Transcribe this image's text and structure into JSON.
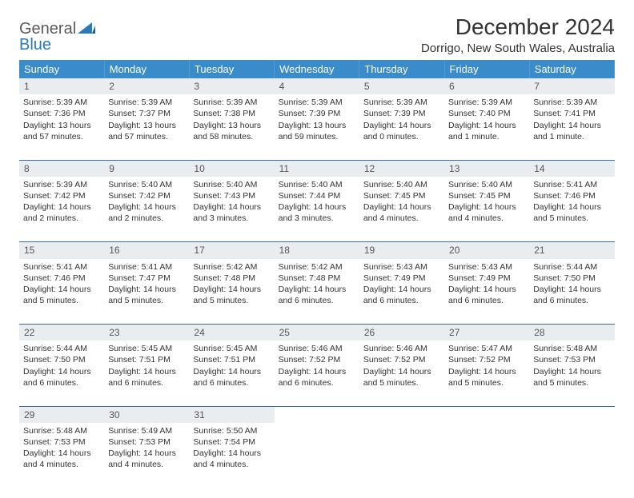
{
  "logo": {
    "word1": "General",
    "word2": "Blue",
    "accent_color": "#2a7ab8"
  },
  "title": "December 2024",
  "location": "Dorrigo, New South Wales, Australia",
  "theme": {
    "header_bg": "#3a8bc9",
    "header_text": "#ffffff",
    "daynum_bg": "#e9edf0",
    "border_color": "#3a6a9a",
    "text_color": "#333333",
    "cell_fontsize": 10.5,
    "header_fontsize": 13
  },
  "weekdays": [
    "Sunday",
    "Monday",
    "Tuesday",
    "Wednesday",
    "Thursday",
    "Friday",
    "Saturday"
  ],
  "weeks": [
    {
      "nums": [
        "1",
        "2",
        "3",
        "4",
        "5",
        "6",
        "7"
      ],
      "cells": [
        {
          "sunrise": "Sunrise: 5:39 AM",
          "sunset": "Sunset: 7:36 PM",
          "day1": "Daylight: 13 hours",
          "day2": "and 57 minutes."
        },
        {
          "sunrise": "Sunrise: 5:39 AM",
          "sunset": "Sunset: 7:37 PM",
          "day1": "Daylight: 13 hours",
          "day2": "and 57 minutes."
        },
        {
          "sunrise": "Sunrise: 5:39 AM",
          "sunset": "Sunset: 7:38 PM",
          "day1": "Daylight: 13 hours",
          "day2": "and 58 minutes."
        },
        {
          "sunrise": "Sunrise: 5:39 AM",
          "sunset": "Sunset: 7:39 PM",
          "day1": "Daylight: 13 hours",
          "day2": "and 59 minutes."
        },
        {
          "sunrise": "Sunrise: 5:39 AM",
          "sunset": "Sunset: 7:39 PM",
          "day1": "Daylight: 14 hours",
          "day2": "and 0 minutes."
        },
        {
          "sunrise": "Sunrise: 5:39 AM",
          "sunset": "Sunset: 7:40 PM",
          "day1": "Daylight: 14 hours",
          "day2": "and 1 minute."
        },
        {
          "sunrise": "Sunrise: 5:39 AM",
          "sunset": "Sunset: 7:41 PM",
          "day1": "Daylight: 14 hours",
          "day2": "and 1 minute."
        }
      ]
    },
    {
      "nums": [
        "8",
        "9",
        "10",
        "11",
        "12",
        "13",
        "14"
      ],
      "cells": [
        {
          "sunrise": "Sunrise: 5:39 AM",
          "sunset": "Sunset: 7:42 PM",
          "day1": "Daylight: 14 hours",
          "day2": "and 2 minutes."
        },
        {
          "sunrise": "Sunrise: 5:40 AM",
          "sunset": "Sunset: 7:42 PM",
          "day1": "Daylight: 14 hours",
          "day2": "and 2 minutes."
        },
        {
          "sunrise": "Sunrise: 5:40 AM",
          "sunset": "Sunset: 7:43 PM",
          "day1": "Daylight: 14 hours",
          "day2": "and 3 minutes."
        },
        {
          "sunrise": "Sunrise: 5:40 AM",
          "sunset": "Sunset: 7:44 PM",
          "day1": "Daylight: 14 hours",
          "day2": "and 3 minutes."
        },
        {
          "sunrise": "Sunrise: 5:40 AM",
          "sunset": "Sunset: 7:45 PM",
          "day1": "Daylight: 14 hours",
          "day2": "and 4 minutes."
        },
        {
          "sunrise": "Sunrise: 5:40 AM",
          "sunset": "Sunset: 7:45 PM",
          "day1": "Daylight: 14 hours",
          "day2": "and 4 minutes."
        },
        {
          "sunrise": "Sunrise: 5:41 AM",
          "sunset": "Sunset: 7:46 PM",
          "day1": "Daylight: 14 hours",
          "day2": "and 5 minutes."
        }
      ]
    },
    {
      "nums": [
        "15",
        "16",
        "17",
        "18",
        "19",
        "20",
        "21"
      ],
      "cells": [
        {
          "sunrise": "Sunrise: 5:41 AM",
          "sunset": "Sunset: 7:46 PM",
          "day1": "Daylight: 14 hours",
          "day2": "and 5 minutes."
        },
        {
          "sunrise": "Sunrise: 5:41 AM",
          "sunset": "Sunset: 7:47 PM",
          "day1": "Daylight: 14 hours",
          "day2": "and 5 minutes."
        },
        {
          "sunrise": "Sunrise: 5:42 AM",
          "sunset": "Sunset: 7:48 PM",
          "day1": "Daylight: 14 hours",
          "day2": "and 5 minutes."
        },
        {
          "sunrise": "Sunrise: 5:42 AM",
          "sunset": "Sunset: 7:48 PM",
          "day1": "Daylight: 14 hours",
          "day2": "and 6 minutes."
        },
        {
          "sunrise": "Sunrise: 5:43 AM",
          "sunset": "Sunset: 7:49 PM",
          "day1": "Daylight: 14 hours",
          "day2": "and 6 minutes."
        },
        {
          "sunrise": "Sunrise: 5:43 AM",
          "sunset": "Sunset: 7:49 PM",
          "day1": "Daylight: 14 hours",
          "day2": "and 6 minutes."
        },
        {
          "sunrise": "Sunrise: 5:44 AM",
          "sunset": "Sunset: 7:50 PM",
          "day1": "Daylight: 14 hours",
          "day2": "and 6 minutes."
        }
      ]
    },
    {
      "nums": [
        "22",
        "23",
        "24",
        "25",
        "26",
        "27",
        "28"
      ],
      "cells": [
        {
          "sunrise": "Sunrise: 5:44 AM",
          "sunset": "Sunset: 7:50 PM",
          "day1": "Daylight: 14 hours",
          "day2": "and 6 minutes."
        },
        {
          "sunrise": "Sunrise: 5:45 AM",
          "sunset": "Sunset: 7:51 PM",
          "day1": "Daylight: 14 hours",
          "day2": "and 6 minutes."
        },
        {
          "sunrise": "Sunrise: 5:45 AM",
          "sunset": "Sunset: 7:51 PM",
          "day1": "Daylight: 14 hours",
          "day2": "and 6 minutes."
        },
        {
          "sunrise": "Sunrise: 5:46 AM",
          "sunset": "Sunset: 7:52 PM",
          "day1": "Daylight: 14 hours",
          "day2": "and 6 minutes."
        },
        {
          "sunrise": "Sunrise: 5:46 AM",
          "sunset": "Sunset: 7:52 PM",
          "day1": "Daylight: 14 hours",
          "day2": "and 5 minutes."
        },
        {
          "sunrise": "Sunrise: 5:47 AM",
          "sunset": "Sunset: 7:52 PM",
          "day1": "Daylight: 14 hours",
          "day2": "and 5 minutes."
        },
        {
          "sunrise": "Sunrise: 5:48 AM",
          "sunset": "Sunset: 7:53 PM",
          "day1": "Daylight: 14 hours",
          "day2": "and 5 minutes."
        }
      ]
    },
    {
      "nums": [
        "29",
        "30",
        "31",
        "",
        "",
        "",
        ""
      ],
      "cells": [
        {
          "sunrise": "Sunrise: 5:48 AM",
          "sunset": "Sunset: 7:53 PM",
          "day1": "Daylight: 14 hours",
          "day2": "and 4 minutes."
        },
        {
          "sunrise": "Sunrise: 5:49 AM",
          "sunset": "Sunset: 7:53 PM",
          "day1": "Daylight: 14 hours",
          "day2": "and 4 minutes."
        },
        {
          "sunrise": "Sunrise: 5:50 AM",
          "sunset": "Sunset: 7:54 PM",
          "day1": "Daylight: 14 hours",
          "day2": "and 4 minutes."
        },
        null,
        null,
        null,
        null
      ]
    }
  ]
}
